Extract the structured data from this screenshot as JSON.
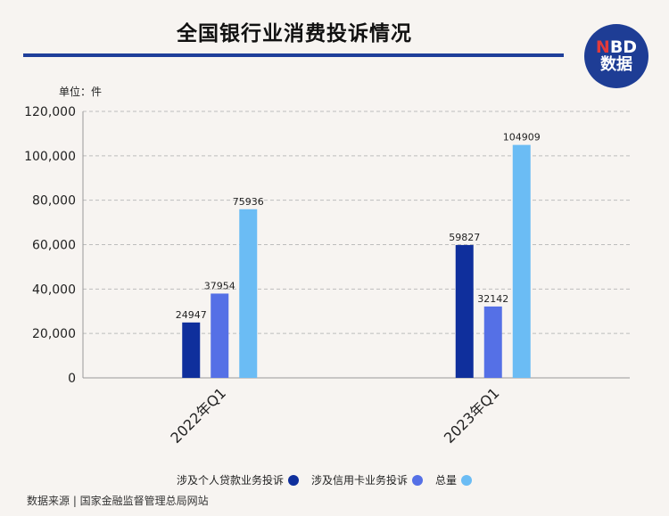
{
  "title": "全国银行业消费投诉情况",
  "logo": {
    "top_n": "N",
    "top_rest": "BD",
    "bottom": "数据"
  },
  "unit_label": "单位：件",
  "source": "数据来源 | 国家金融监督管理总局网站",
  "colors": {
    "personal_loan": "#0f2f9c",
    "credit_card": "#5570e6",
    "total": "#6bbcf4",
    "title_rule": "#1f3f9a"
  },
  "chart_data": {
    "type": "bar",
    "categories": [
      "2022年Q1",
      "2023年Q1"
    ],
    "series": [
      {
        "name": "涉及个人贷款业务投诉",
        "values": [
          24947,
          59827
        ]
      },
      {
        "name": "涉及信用卡业务投诉",
        "values": [
          37954,
          32142
        ]
      },
      {
        "name": "总量",
        "values": [
          75936,
          104909
        ]
      }
    ],
    "ylim": [
      0,
      120000
    ],
    "yticks": [
      0,
      20000,
      40000,
      60000,
      80000,
      100000,
      120000
    ],
    "ytick_labels": [
      "0",
      "20,000",
      "40,000",
      "60,000",
      "80,000",
      "100,000",
      "120,000"
    ],
    "grid": true,
    "legend_position": "bottom"
  }
}
